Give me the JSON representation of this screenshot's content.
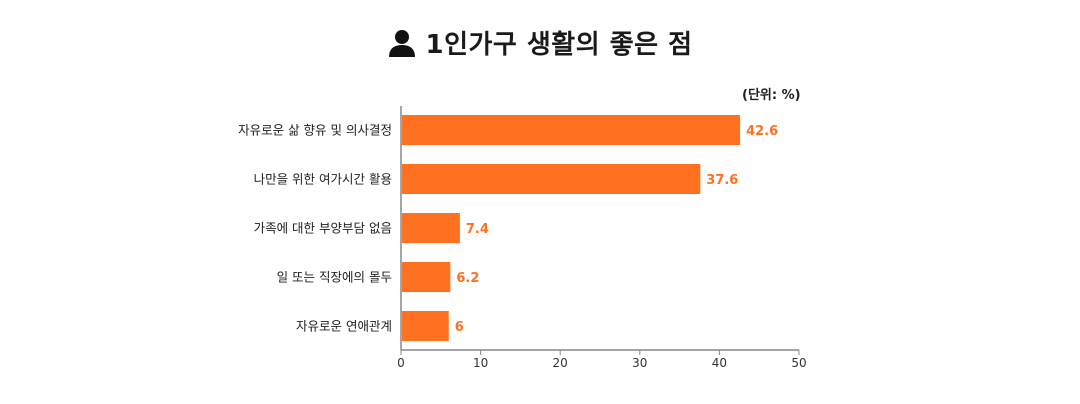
{
  "header": {
    "title": "1인가구 생활의 좋은 점",
    "icon": "person-icon",
    "unit": "(단위: %)"
  },
  "chart_data": {
    "type": "bar",
    "orientation": "horizontal",
    "title": "1인가구 생활의 좋은 점",
    "unit_label": "(단위: %)",
    "categories": [
      "자유로운 삶 향유 및 의사결정",
      "나만을 위한 여가시간 활용",
      "가족에 대한 부양부담 없음",
      "일 또는 직장에의 몰두",
      "자유로운 연애관계"
    ],
    "values": [
      42.6,
      37.6,
      7.4,
      6.2,
      6
    ],
    "value_labels": [
      "42.6",
      "37.6",
      "7.4",
      "6.2",
      "6"
    ],
    "xlim": [
      0,
      50
    ],
    "xticks": [
      0,
      10,
      20,
      30,
      40,
      50
    ],
    "grid": false,
    "legend": "none",
    "bar_color": "#ff7021",
    "value_label_color": "#ff7021"
  }
}
